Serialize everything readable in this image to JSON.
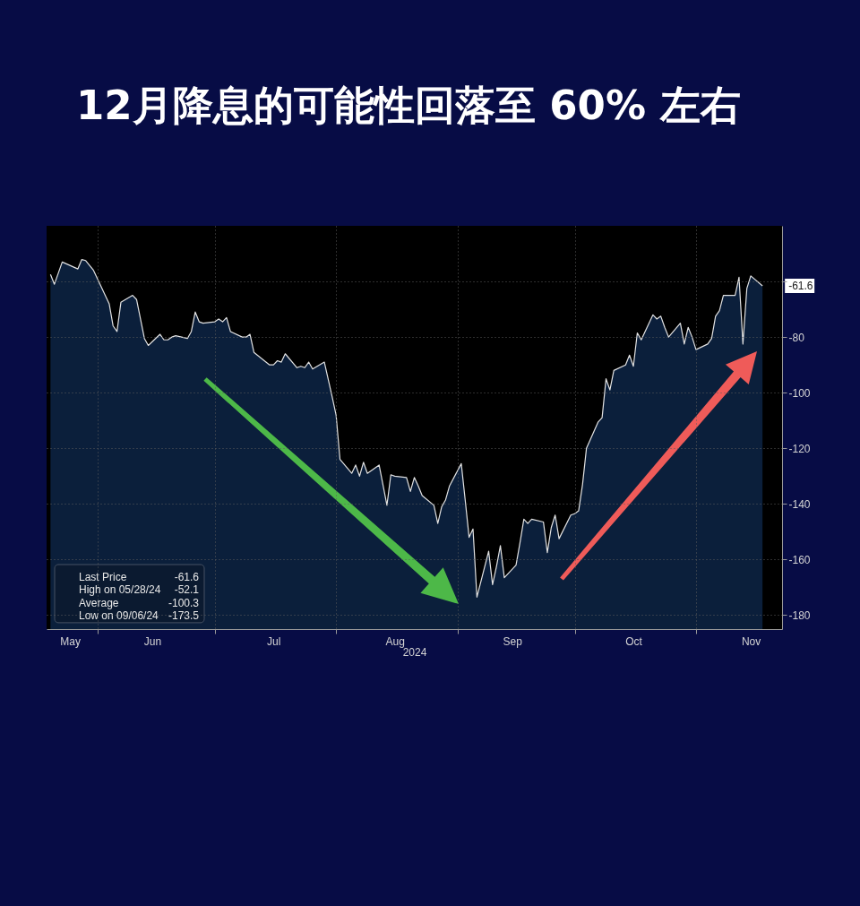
{
  "chart_data": {
    "type": "line",
    "title": "12月降息的可能性回落至 60% 左右",
    "xlabel": "2024",
    "x": [
      "2024-05-20",
      "2024-05-21",
      "2024-05-23",
      "2024-05-27",
      "2024-05-28",
      "2024-05-29",
      "2024-05-31",
      "2024-06-04",
      "2024-06-05",
      "2024-06-06",
      "2024-06-07",
      "2024-06-10",
      "2024-06-11",
      "2024-06-13",
      "2024-06-14",
      "2024-06-17",
      "2024-06-18",
      "2024-06-19",
      "2024-06-20",
      "2024-06-21",
      "2024-06-24",
      "2024-06-25",
      "2024-06-26",
      "2024-06-27",
      "2024-06-28",
      "2024-07-01",
      "2024-07-02",
      "2024-07-03",
      "2024-07-04",
      "2024-07-05",
      "2024-07-08",
      "2024-07-09",
      "2024-07-10",
      "2024-07-11",
      "2024-07-15",
      "2024-07-16",
      "2024-07-17",
      "2024-07-18",
      "2024-07-19",
      "2024-07-22",
      "2024-07-23",
      "2024-07-24",
      "2024-07-25",
      "2024-07-26",
      "2024-07-29",
      "2024-07-31",
      "2024-08-01",
      "2024-08-02",
      "2024-08-05",
      "2024-08-06",
      "2024-08-07",
      "2024-08-08",
      "2024-08-09",
      "2024-08-12",
      "2024-08-14",
      "2024-08-15",
      "2024-08-16",
      "2024-08-19",
      "2024-08-20",
      "2024-08-21",
      "2024-08-22",
      "2024-08-23",
      "2024-08-26",
      "2024-08-27",
      "2024-08-28",
      "2024-08-29",
      "2024-08-30",
      "2024-09-02",
      "2024-09-03",
      "2024-09-04",
      "2024-09-05",
      "2024-09-06",
      "2024-09-09",
      "2024-09-10",
      "2024-09-11",
      "2024-09-12",
      "2024-09-13",
      "2024-09-16",
      "2024-09-17",
      "2024-09-18",
      "2024-09-19",
      "2024-09-20",
      "2024-09-23",
      "2024-09-24",
      "2024-09-25",
      "2024-09-26",
      "2024-09-27",
      "2024-09-30",
      "2024-10-01",
      "2024-10-02",
      "2024-10-03",
      "2024-10-04",
      "2024-10-07",
      "2024-10-08",
      "2024-10-09",
      "2024-10-10",
      "2024-10-11",
      "2024-10-14",
      "2024-10-15",
      "2024-10-16",
      "2024-10-17",
      "2024-10-18",
      "2024-10-21",
      "2024-10-22",
      "2024-10-23",
      "2024-10-24",
      "2024-10-25",
      "2024-10-28",
      "2024-10-29",
      "2024-10-30",
      "2024-10-31",
      "2024-11-01",
      "2024-11-04",
      "2024-11-05",
      "2024-11-06",
      "2024-11-07",
      "2024-11-08",
      "2024-11-11",
      "2024-11-12",
      "2024-11-13",
      "2024-11-14",
      "2024-11-15",
      "2024-11-18"
    ],
    "series": [
      {
        "color": "#e2e2e2",
        "values": [
          -57.5,
          -61,
          -53,
          -55.5,
          -52.1,
          -52.5,
          -56,
          -68,
          -76,
          -78,
          -67.5,
          -65,
          -66.5,
          -80.5,
          -83,
          -79,
          -81,
          -81,
          -80,
          -79.5,
          -80.5,
          -78,
          -71,
          -74.5,
          -75,
          -74.5,
          -73.5,
          -74.5,
          -73,
          -78,
          -80,
          -80,
          -79,
          -85.5,
          -90,
          -90,
          -88.5,
          -89,
          -86,
          -91,
          -90.5,
          -91,
          -89,
          -91.5,
          -89,
          -101.5,
          -108,
          -124,
          -129,
          -126,
          -130,
          -125,
          -129,
          -126,
          -140.5,
          -129.5,
          -130,
          -130.5,
          -135.5,
          -130.5,
          -133.5,
          -137,
          -140.5,
          -147,
          -141,
          -138.5,
          -133.5,
          -125.5,
          -138.5,
          -152,
          -149,
          -173.5,
          -157,
          -169,
          -162.5,
          -155,
          -166.5,
          -162,
          -154,
          -145.5,
          -147,
          -145.5,
          -146.5,
          -157.5,
          -148.5,
          -144,
          -152.5,
          -144,
          -143.5,
          -142.5,
          -133,
          -120,
          -110.5,
          -109,
          -95,
          -99,
          -92,
          -90,
          -86.5,
          -90.5,
          -78.5,
          -81,
          -72,
          -73.5,
          -72.5,
          -76.5,
          -80,
          -75,
          -82.5,
          -76.5,
          -80,
          -84.5,
          -82.5,
          -80.5,
          -72.5,
          -70.5,
          -65,
          -65,
          -58.5,
          -82.5,
          -62.5,
          -58,
          -61.6
        ],
        "upper": [
          -57.5,
          -61,
          -53,
          -55.5,
          -52.1,
          -52.5,
          -56,
          -68,
          -76,
          -78,
          -67.5,
          -65,
          -66.5,
          -80.5,
          -83,
          -79,
          -81,
          -81,
          -80,
          -79.5,
          -80.5,
          -78,
          -71,
          -74.5,
          -75,
          -74.5,
          -73.5,
          -74.5,
          -73,
          -78,
          -80,
          -80,
          -79,
          -85.5,
          -90,
          -90,
          -88.5,
          -89,
          -86,
          -91,
          -90.5,
          -91,
          -89,
          -91.5,
          -89,
          -101.5,
          -108,
          -124,
          -129,
          -126,
          -130,
          -125,
          -129,
          -126,
          -140.5,
          -129.5,
          -130,
          -130.5,
          -135.5,
          -130.5,
          -133.5,
          -137,
          -140.5,
          -147,
          -141,
          -138.5,
          -133.5,
          -125.5,
          -138.5,
          -152,
          -149,
          -173.5,
          -157,
          -169,
          -162.5,
          -155,
          -166.5,
          -162,
          -154,
          -145.5,
          -147,
          -145.5,
          -146.5,
          -157.5,
          -148.5,
          -144,
          -152.5,
          -144,
          -143.5,
          -142.5,
          -133,
          -120,
          -110.5,
          -109,
          -95,
          -99,
          -92,
          -90,
          -86.5,
          -90.5,
          -78.5,
          -81,
          -72,
          -73.5,
          -72.5,
          -76.5,
          -80,
          -75,
          -82.5,
          -76.5,
          -80,
          -84.5,
          -82.5,
          -80.5,
          -72.5,
          -70.5,
          -65,
          -65,
          -58.5,
          -82.5,
          -62.5,
          -58,
          -61.6
        ],
        "lower": [
          -185,
          -185,
          -185,
          -185,
          -185,
          -185,
          -185,
          -185,
          -185,
          -185,
          -185,
          -185,
          -185,
          -185,
          -185,
          -185,
          -185,
          -185,
          -185,
          -185,
          -185,
          -185,
          -185,
          -185,
          -185,
          -185,
          -185,
          -185,
          -185,
          -185,
          -185,
          -185,
          -185,
          -185,
          -185,
          -185,
          -185,
          -185,
          -185,
          -185,
          -185,
          -185,
          -185,
          -185,
          -185,
          -185,
          -185,
          -185,
          -185,
          -185,
          -185,
          -185,
          -185,
          -185,
          -185,
          -185,
          -185,
          -185,
          -185,
          -185,
          -185,
          -185,
          -185,
          -185,
          -185,
          -185,
          -185,
          -185,
          -185,
          -185,
          -185,
          -185,
          -185,
          -185,
          -185,
          -185,
          -185,
          -185,
          -185,
          -185,
          -185,
          -185,
          -185,
          -185,
          -185,
          -185,
          -185,
          -185,
          -185,
          -185,
          -185,
          -185,
          -185,
          -185,
          -185,
          -185,
          -185,
          -185,
          -185,
          -185,
          -185,
          -185,
          -185,
          -185,
          -185,
          -185,
          -185,
          -185,
          -185,
          -185,
          -185,
          -185,
          -185,
          -185,
          -185,
          -185,
          -185,
          -185,
          -185,
          -185,
          -185,
          -185,
          -185
        ]
      }
    ],
    "xlim": [
      "2024-05-19",
      "2024-11-23"
    ],
    "xticks": [
      {
        "value": "2024-05-25",
        "label": "May"
      },
      {
        "value": "2024-06-01",
        "label": null
      },
      {
        "value": "2024-06-15",
        "label": "Jun"
      },
      {
        "value": "2024-07-01",
        "label": null
      },
      {
        "value": "2024-07-16",
        "label": "Jul"
      },
      {
        "value": "2024-08-01",
        "label": null
      },
      {
        "value": "2024-08-16",
        "label": "Aug"
      },
      {
        "value": "2024-09-01",
        "label": null
      },
      {
        "value": "2024-09-15",
        "label": "Sep"
      },
      {
        "value": "2024-10-01",
        "label": null
      },
      {
        "value": "2024-10-16",
        "label": "Oct"
      },
      {
        "value": "2024-11-01",
        "label": null
      },
      {
        "value": "2024-11-15",
        "label": "Nov"
      }
    ],
    "ylim": [
      -185,
      -40
    ],
    "yticks": [
      {
        "value": -60,
        "label": null
      },
      -80,
      -100,
      -120,
      -140,
      -160,
      -180
    ],
    "grid": true,
    "annotations": [
      "Last Price",
      "-61.6",
      "High on 05/28/24",
      "-52.1",
      "Average",
      "-100.3",
      "Low on 09/06/24",
      "-173.5",
      {
        "text": "-61.6",
        "x": "2024-11-18",
        "y": -61.6
      }
    ]
  }
}
